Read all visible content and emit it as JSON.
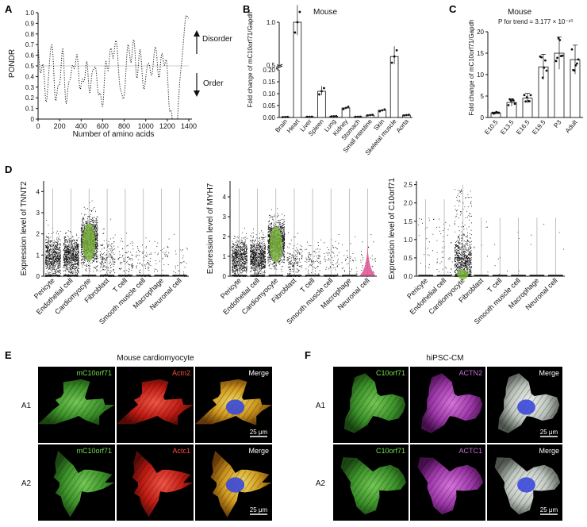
{
  "panels": {
    "A": {
      "label": "A",
      "ylabel": "PONDR",
      "xlabel": "Number of amino acids",
      "yticks": [
        "0",
        "0.1",
        "0.2",
        "0.3",
        "0.4",
        "0.5",
        "0.6",
        "0.7",
        "0.8",
        "0.9",
        "1.0"
      ],
      "xticks": [
        "0",
        "200",
        "400",
        "600",
        "800",
        "1000",
        "1200",
        "1400"
      ],
      "disorder_label": "Disorder",
      "order_label": "Order",
      "threshold": 0.5
    },
    "B": {
      "label": "B",
      "title": "Mouse",
      "ylabel": "Fold change of mC10orf71/Gapdh",
      "yticks_low": [
        "0.00",
        "0.05",
        "0.10",
        "0.15",
        "0.20"
      ],
      "yticks_high": [
        "0.5",
        "1.0"
      ],
      "categories": [
        "Brain",
        "Heart",
        "Liver",
        "Spleen",
        "Lung",
        "Kidney",
        "Stomach",
        "Small intestine",
        "Skin",
        "Skeletal muscle",
        "Aorta"
      ],
      "values": [
        0.002,
        1.0,
        0.003,
        0.11,
        0.005,
        0.04,
        0.003,
        0.01,
        0.03,
        0.6,
        0.01
      ],
      "colors": {
        "bar_fill": "#ffffff",
        "points": "#111111"
      }
    },
    "C": {
      "label": "C",
      "title": "Mouse",
      "ylabel": "Fold change of mC10orf71/Gapdh",
      "annotation": "P for trend = 3.177 × 10⁻¹⁰",
      "yticks": [
        "0",
        "5",
        "10",
        "15",
        "20"
      ],
      "categories": [
        "E10.5",
        "E13.5",
        "E16.5",
        "E19.5",
        "P3",
        "Adult"
      ],
      "values": [
        1.0,
        3.5,
        4.5,
        11.8,
        15.0,
        13.5
      ]
    },
    "D": {
      "label": "D",
      "cell_types": [
        "Pericyte",
        "Endothelial cell",
        "Cardiomyocyte",
        "Fibroblast",
        "T cell",
        "Smooth muscle cell",
        "Macrophage",
        "Neuronal cell"
      ],
      "plots": [
        {
          "ylabel": "Expression level of TNNT2",
          "yticks": [
            "0",
            "1",
            "2",
            "3",
            "4"
          ],
          "ymax": 4.5
        },
        {
          "ylabel": "Expression level of MYH7",
          "yticks": [
            "0",
            "1",
            "2",
            "3",
            "4"
          ],
          "ymax": 4.8
        },
        {
          "ylabel": "Expression level of C10orf71",
          "yticks": [
            "0.0",
            "0.5",
            "1.0",
            "1.5",
            "2.0",
            "2.5"
          ],
          "ymax": 2.6
        }
      ],
      "colors": {
        "cardiomyocyte": "#7ab83a",
        "neuronal": "#d9518f"
      }
    },
    "E": {
      "label": "E",
      "title": "Mouse cardiomyocyte",
      "rows": [
        {
          "name": "A1",
          "channels": [
            "mC10orf71",
            "Actn2",
            "Merge"
          ],
          "scale": "25 μm"
        },
        {
          "name": "A2",
          "channels": [
            "mC10orf71",
            "Actc1",
            "Merge"
          ],
          "scale": "25 μm"
        }
      ]
    },
    "F": {
      "label": "F",
      "title": "hiPSC-CM",
      "rows": [
        {
          "name": "A1",
          "channels": [
            "C10orf71",
            "ACTN2",
            "Merge"
          ],
          "scale": "25 μm"
        },
        {
          "name": "A2",
          "channels": [
            "C10orf71",
            "ACTC1",
            "Merge"
          ],
          "scale": "25 μm"
        }
      ]
    }
  }
}
